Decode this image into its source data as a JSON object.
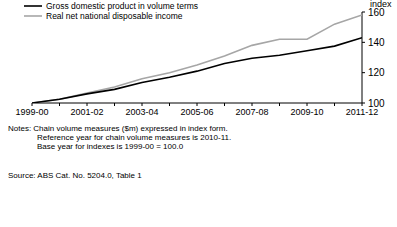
{
  "chart_data": {
    "type": "line",
    "ylabel": "index",
    "categories": [
      "1999-00",
      null,
      "2001-02",
      null,
      "2003-04",
      null,
      "2005-06",
      null,
      "2007-08",
      null,
      "2009-10",
      null,
      "2011-12"
    ],
    "series": [
      {
        "name": "Gross domestic product in volume terms",
        "color": "#000000",
        "values": [
          100,
          102.5,
          106,
          109,
          113.5,
          117,
          121,
          126,
          129.5,
          131.5,
          134.5,
          137.5,
          143
        ]
      },
      {
        "name": "Real net national disposable income",
        "color": "#a6a6a6",
        "values": [
          100,
          102.5,
          106.5,
          110.5,
          116,
          120,
          125,
          131,
          138,
          142,
          142,
          152,
          158
        ]
      }
    ],
    "ylim": [
      100,
      160
    ],
    "yticks": [
      100,
      120,
      140,
      160
    ],
    "grid": false,
    "legend": "upper left",
    "notes": [
      "Notes: Chain volume measures ($m) expressed in index form.",
      "Reference year for chain volume measures is 2010-11.",
      "Base year for indexes is 1999-00 = 100.0"
    ],
    "source": "Source: ABS Cat. No. 5204.0, Table 1"
  }
}
